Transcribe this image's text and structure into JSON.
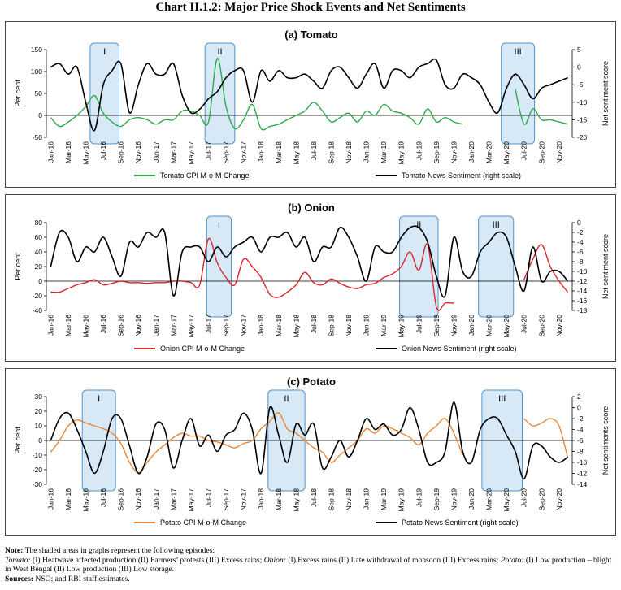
{
  "title": "Chart II.1.2: Major Price Shock Events and Net Sentiments",
  "notes": {
    "note_label": "Note:",
    "note_intro": "The shaded areas in graphs represent the following episodes:",
    "tomato_label": "Tomato:",
    "tomato_text": "(I) Heatwave affected production (II) Farmers’ protests (III) Excess rains;",
    "onion_label": "Onion:",
    "onion_text": "(I) Excess rains (II) Late withdrawal of monsoon (III) Excess rains;",
    "potato_label": "Potato:",
    "potato_text": "(I) Low production – blight in West Bengal (II) Low production (III) Low storage.",
    "sources_label": "Sources:",
    "sources_text": "NSO; and RBI staff estimates."
  },
  "chart_data": [
    {
      "type": "line",
      "title": "(a) Tomato",
      "ylabel": "Per cent",
      "ylabel_right": "Net sentiment score",
      "ylim": [
        -50,
        150
      ],
      "yticks": [
        150,
        100,
        50,
        0,
        -50
      ],
      "ylim_right": [
        -20,
        5
      ],
      "yticks_right": [
        5,
        0,
        -5,
        -10,
        -15,
        -20
      ],
      "x_labels": [
        "Jan-16",
        "Mar-16",
        "May-16",
        "Jul-16",
        "Sep-16",
        "Nov-16",
        "Jan-17",
        "Mar-17",
        "May-17",
        "Jul-17",
        "Sep-17",
        "Nov-17",
        "Jan-18",
        "Mar-18",
        "May-18",
        "Jul-18",
        "Sep-18",
        "Nov-18",
        "Jan-19",
        "Mar-19",
        "May-19",
        "Jul-19",
        "Sep-19",
        "Nov-19",
        "Jan-20",
        "Mar-20",
        "May-20",
        "Jul-20",
        "Sep-20",
        "Nov-20"
      ],
      "shaded": [
        {
          "label": "I",
          "from": 4.5,
          "to": 7.8
        },
        {
          "label": "II",
          "from": 17.6,
          "to": 21.0
        },
        {
          "label": "III",
          "from": 51.4,
          "to": 55.2
        }
      ],
      "series": [
        {
          "name": "Tomato CPI M-o-M Change",
          "axis": "left",
          "color": "#2ea84a",
          "values": [
            -5,
            -25,
            -15,
            0,
            20,
            45,
            5,
            -15,
            -25,
            -10,
            -5,
            -10,
            -20,
            -10,
            -10,
            10,
            10,
            0,
            -15,
            130,
            20,
            -30,
            -10,
            25,
            -30,
            -25,
            -20,
            -10,
            0,
            10,
            30,
            10,
            -15,
            -5,
            5,
            -15,
            10,
            0,
            25,
            10,
            5,
            -5,
            -20,
            15,
            -15,
            -5,
            -15,
            -20,
            null,
            null,
            null,
            null,
            null,
            60,
            -20,
            15,
            -10,
            -10,
            -15,
            -20
          ]
        },
        {
          "name": "Tomato News Sentiment (right scale)",
          "axis": "right",
          "color": "#000000",
          "values": [
            0,
            1,
            -2,
            0,
            -10,
            -18,
            -5,
            -1,
            1,
            -13,
            -5,
            1,
            -2,
            -2,
            1,
            -8,
            -13,
            -12,
            -9,
            -7,
            -3,
            -1,
            -1,
            -10,
            -1,
            -4,
            -1,
            -3,
            -3,
            -2,
            -4,
            -6,
            -1,
            0,
            -3,
            -6,
            -2,
            1,
            -6,
            -1,
            -1,
            -3,
            0,
            1,
            2,
            -5,
            -6,
            -2,
            -3,
            -5,
            -10,
            -13,
            -6,
            -2,
            -5,
            -9,
            -6,
            -5,
            -4,
            -3
          ]
        }
      ]
    },
    {
      "type": "line",
      "title": "(b) Onion",
      "ylabel": "Per cent",
      "ylabel_right": "Net sentiment score",
      "ylim": [
        -40,
        80
      ],
      "yticks": [
        80,
        60,
        40,
        20,
        0,
        -20,
        -40
      ],
      "ylim_right": [
        -18,
        0
      ],
      "yticks_right": [
        0,
        -2,
        -4,
        -6,
        -8,
        -10,
        -12,
        -14,
        -16,
        -18
      ],
      "x_labels": [
        "Jan-16",
        "Mar-16",
        "May-16",
        "Jul-16",
        "Sep-16",
        "Nov-16",
        "Jan-17",
        "Mar-17",
        "May-17",
        "Jul-17",
        "Sep-17",
        "Nov-17",
        "Jan-18",
        "Mar-18",
        "May-18",
        "Jul-18",
        "Sep-18",
        "Nov-18",
        "Jan-19",
        "Mar-19",
        "May-19",
        "Jul-19",
        "Sep-19",
        "Nov-19",
        "Jan-20",
        "Mar-20",
        "May-20",
        "Jul-20",
        "Sep-20",
        "Nov-20"
      ],
      "shaded": [
        {
          "label": "I",
          "from": 17.8,
          "to": 20.6
        },
        {
          "label": "II",
          "from": 39.8,
          "to": 44.2
        },
        {
          "label": "III",
          "from": 48.8,
          "to": 52.8
        }
      ],
      "series": [
        {
          "name": "Onion CPI M-o-M Change",
          "axis": "left",
          "color": "#d8262c",
          "values": [
            -15,
            -15,
            -10,
            -5,
            -2,
            2,
            -5,
            -3,
            0,
            -2,
            -2,
            -3,
            -2,
            -2,
            0,
            0,
            -2,
            -5,
            58,
            25,
            5,
            -5,
            30,
            20,
            5,
            -18,
            -22,
            -15,
            -5,
            12,
            -2,
            -5,
            3,
            -3,
            -8,
            -10,
            -5,
            -3,
            5,
            10,
            20,
            40,
            15,
            50,
            -35,
            -30,
            -30,
            null,
            null,
            null,
            null,
            null,
            null,
            null,
            2,
            30,
            50,
            20,
            0,
            -15
          ]
        },
        {
          "name": "Onion News Sentiment (right scale)",
          "axis": "right",
          "color": "#000000",
          "values": [
            -9,
            -2,
            -3,
            -8,
            -5,
            -6,
            -3,
            -7,
            -11,
            -4,
            -5,
            -2,
            -3,
            -2,
            -15,
            -6,
            -5,
            -5,
            -8,
            -5,
            -7,
            -5,
            -4,
            -3,
            -6,
            -3,
            -3,
            -2,
            -5,
            -3,
            -8,
            -5,
            -5,
            -1,
            -3,
            -7,
            -12,
            -5,
            -6,
            -6,
            -3,
            -1,
            -1,
            -4,
            -11,
            -15,
            -3,
            -10,
            -11,
            -6,
            -4,
            -2,
            -3,
            -9,
            -14,
            -5,
            -12,
            -10,
            -10,
            -12
          ]
        }
      ]
    },
    {
      "type": "line",
      "title": "(c) Potato",
      "ylabel": "Per cent",
      "ylabel_right": "Net sentiments score",
      "ylim": [
        -30,
        30
      ],
      "yticks": [
        30,
        20,
        10,
        0,
        -10,
        -20,
        -30
      ],
      "ylim_right": [
        -14,
        2
      ],
      "yticks_right": [
        2,
        0,
        -2,
        -4,
        -6,
        -8,
        -10,
        -12,
        -14
      ],
      "x_labels": [
        "Jan-16",
        "Mar-16",
        "May-16",
        "Jul-16",
        "Sep-16",
        "Nov-16",
        "Jan-17",
        "Mar-17",
        "May-17",
        "Jul-17",
        "Sep-17",
        "Nov-17",
        "Jan-18",
        "Mar-18",
        "May-18",
        "Jul-18",
        "Sep-18",
        "Nov-18",
        "Jan-19",
        "Mar-19",
        "May-19",
        "Jul-19",
        "Sep-19",
        "Nov-19",
        "Jan-20",
        "Mar-20",
        "May-20",
        "Jul-20",
        "Sep-20",
        "Nov-20"
      ],
      "shaded": [
        {
          "label": "I",
          "from": 3.6,
          "to": 7.4
        },
        {
          "label": "II",
          "from": 24.8,
          "to": 29.0
        },
        {
          "label": "III",
          "from": 49.2,
          "to": 53.8
        }
      ],
      "series": [
        {
          "name": "Potato CPI M-o-M Change",
          "axis": "left",
          "color": "#e8863a",
          "values": [
            -8,
            0,
            10,
            14,
            12,
            10,
            8,
            5,
            -2,
            -15,
            -22,
            -15,
            -8,
            -3,
            2,
            5,
            3,
            3,
            0,
            -1,
            -3,
            -5,
            -2,
            0,
            8,
            13,
            19,
            8,
            5,
            0,
            -5,
            -8,
            -15,
            -10,
            -5,
            0,
            8,
            5,
            10,
            8,
            5,
            2,
            -3,
            5,
            10,
            15,
            5,
            -10,
            null,
            null,
            null,
            null,
            null,
            null,
            15,
            10,
            12,
            15,
            10,
            -12
          ]
        },
        {
          "name": "Potato News Sentiment (right scale)",
          "axis": "right",
          "color": "#000000",
          "values": [
            -6,
            -2,
            -1,
            -4,
            -8,
            -12,
            -8,
            -2,
            -2,
            -7,
            -12,
            -9,
            -3,
            -4,
            -11,
            -6,
            -2,
            -7,
            -5,
            -8,
            -5,
            -4,
            -1,
            -4,
            -12,
            0,
            -5,
            -10,
            -3,
            -5,
            -3,
            -11,
            -9,
            -6,
            -9,
            -6,
            -2,
            -4,
            -3,
            -5,
            -4,
            0,
            -4,
            -10,
            -10,
            -8,
            1,
            -8,
            -10,
            -4,
            -2,
            -2,
            -5,
            -8,
            -13,
            -7,
            -7,
            -9,
            -10,
            -9
          ]
        }
      ]
    }
  ]
}
